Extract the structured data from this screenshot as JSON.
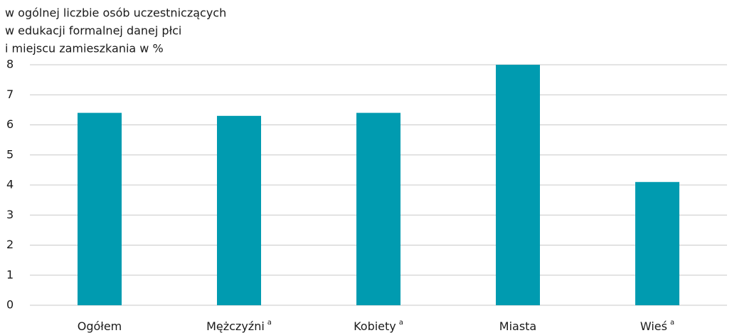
{
  "chart_data": {
    "type": "bar",
    "title_lines": [
      "w ogólnej liczbie osób uczestniczących",
      "w edukacji formalnej danej płci",
      "i miejscu zamieszkania w %"
    ],
    "categories": [
      "Ogółem",
      "Mężczyźni",
      "Kobiety",
      "Miasta",
      "Wieś"
    ],
    "footnote_marks": [
      null,
      "a",
      "a",
      null,
      "a"
    ],
    "values": [
      6.4,
      6.3,
      6.4,
      8.0,
      4.1
    ],
    "color": "#009bb0",
    "ylim": [
      0,
      8
    ],
    "yticks": [
      0,
      1,
      2,
      3,
      4,
      5,
      6,
      7,
      8
    ],
    "grid": true
  }
}
